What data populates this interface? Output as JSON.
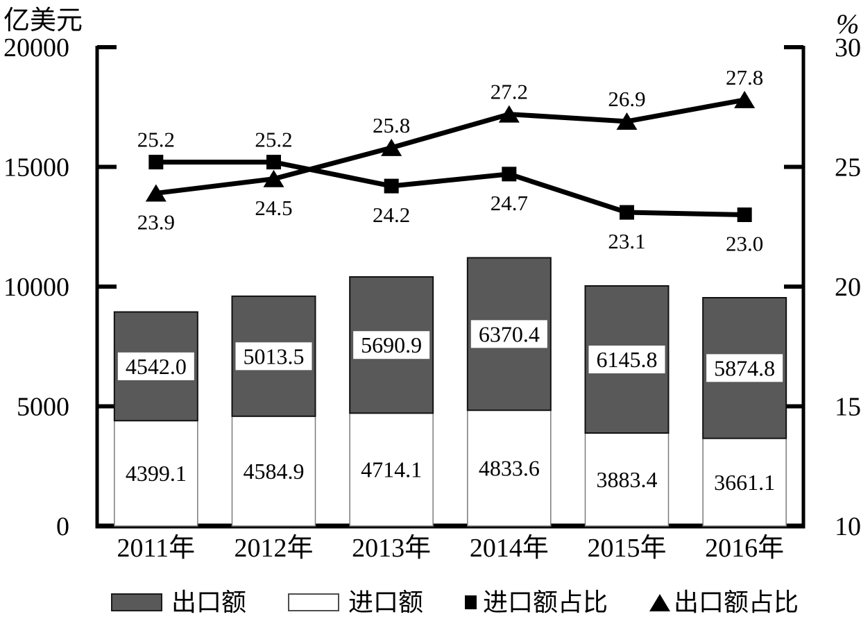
{
  "chart_data": {
    "type": "combo",
    "categories": [
      "2011年",
      "2012年",
      "2013年",
      "2014年",
      "2015年",
      "2016年"
    ],
    "bar_series": [
      {
        "name": "出口额",
        "stack": "top",
        "fill": "#595959",
        "values": [
          4542.0,
          5013.5,
          5690.9,
          6370.4,
          6145.8,
          5874.8
        ],
        "labels": [
          "4542.0",
          "5013.5",
          "5690.9",
          "6370.4",
          "6145.8",
          "5874.8"
        ]
      },
      {
        "name": "进口额",
        "stack": "bottom",
        "fill": "#ffffff",
        "values": [
          4399.1,
          4584.9,
          4714.1,
          4833.6,
          3883.4,
          3661.1
        ],
        "labels": [
          "4399.1",
          "4584.9",
          "4714.1",
          "4833.6",
          "3883.4",
          "3661.1"
        ]
      }
    ],
    "line_series": [
      {
        "name": "进口额占比",
        "marker": "square",
        "color": "#000000",
        "values": [
          25.2,
          25.2,
          24.2,
          24.7,
          23.1,
          23.0
        ],
        "labels": [
          "25.2",
          "25.2",
          "24.2",
          "24.7",
          "23.1",
          "23.0"
        ],
        "label_positions": [
          "above",
          "above",
          "below",
          "below",
          "below",
          "below"
        ]
      },
      {
        "name": "出口额占比",
        "marker": "triangle",
        "color": "#000000",
        "values": [
          23.9,
          24.5,
          25.8,
          27.2,
          26.9,
          27.8
        ],
        "labels": [
          "23.9",
          "24.5",
          "25.8",
          "27.2",
          "26.9",
          "27.8"
        ],
        "label_positions": [
          "below",
          "below",
          "above",
          "above",
          "above",
          "above"
        ]
      }
    ],
    "left_axis": {
      "title": "亿美元",
      "min": 0,
      "max": 20000,
      "ticks": [
        0,
        5000,
        10000,
        15000,
        20000
      ],
      "tick_labels": [
        "0",
        "5000",
        "10000",
        "15000",
        "20000"
      ]
    },
    "right_axis": {
      "title": "%",
      "min": 10,
      "max": 30,
      "ticks": [
        10,
        15,
        20,
        25,
        30
      ],
      "tick_labels": [
        "10",
        "15",
        "20",
        "25",
        "30"
      ]
    },
    "legend": [
      "出口额",
      "进口额",
      "进口额占比",
      "出口额占比"
    ],
    "legend_position": "bottom",
    "grid": false,
    "colors": {
      "bar_export_fill": "#595959",
      "bar_import_fill": "#ffffff",
      "line_color": "#000000",
      "text_color": "#000000"
    }
  }
}
